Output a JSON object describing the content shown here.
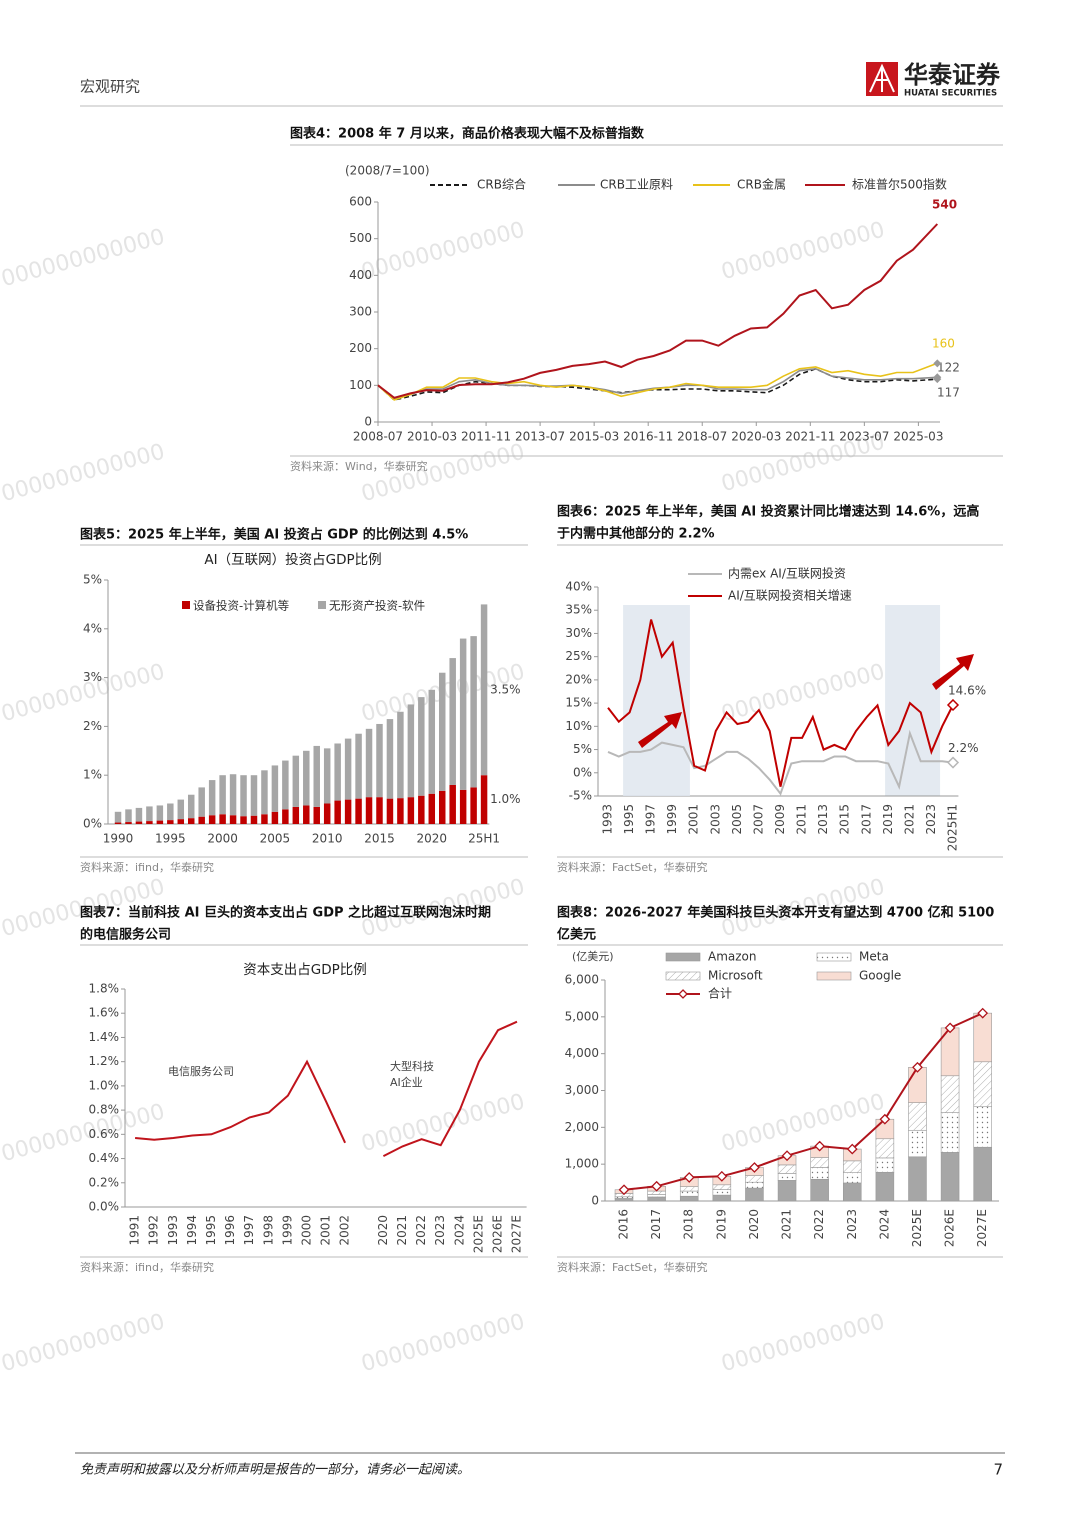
{
  "header": {
    "section": "宏观研究",
    "logo_name": "华泰证券",
    "logo_en": "HUATAI SECURITIES"
  },
  "watermark": "000000000000",
  "chart_data": [
    {
      "type": "line",
      "title": "图表4：2008 年 7 月以来，商品价格表现大幅不及标普指数",
      "subtitle": "(2008/7=100)",
      "source": "资料来源：Wind，华泰研究",
      "x": [
        "2008-07",
        "2009-01",
        "2009-07",
        "2010-01",
        "2010-07",
        "2011-01",
        "2011-07",
        "2012-01",
        "2012-07",
        "2013-01",
        "2013-07",
        "2014-01",
        "2014-07",
        "2015-01",
        "2015-07",
        "2016-01",
        "2016-07",
        "2017-01",
        "2017-07",
        "2018-01",
        "2018-07",
        "2019-01",
        "2019-07",
        "2020-01",
        "2020-07",
        "2021-01",
        "2021-07",
        "2022-01",
        "2022-07",
        "2023-01",
        "2023-07",
        "2024-01",
        "2024-07",
        "2025-01",
        "2025-10"
      ],
      "xlim": [
        "2008-07",
        "2025-11"
      ],
      "xticks": [
        "2008-07",
        "2010-03",
        "2011-11",
        "2013-07",
        "2015-03",
        "2016-11",
        "2018-07",
        "2020-03",
        "2021-11",
        "2023-07",
        "2025-03"
      ],
      "ylim": [
        0,
        600
      ],
      "yticks": [
        0,
        100,
        200,
        300,
        400,
        500,
        600
      ],
      "series": [
        {
          "name": "CRB综合",
          "color": "#1a1a1a",
          "dashed": true,
          "values": [
            100,
            60,
            70,
            82,
            80,
            100,
            110,
            105,
            100,
            100,
            97,
            97,
            95,
            90,
            85,
            80,
            85,
            88,
            88,
            90,
            90,
            85,
            85,
            82,
            80,
            100,
            130,
            145,
            125,
            115,
            110,
            110,
            115,
            112,
            117
          ]
        },
        {
          "name": "CRB工业原料",
          "color": "#8c8c8c",
          "values": [
            100,
            62,
            75,
            90,
            90,
            110,
            115,
            105,
            100,
            100,
            98,
            98,
            100,
            95,
            88,
            78,
            85,
            92,
            95,
            100,
            100,
            90,
            90,
            88,
            88,
            110,
            140,
            145,
            125,
            120,
            115,
            115,
            118,
            118,
            122
          ]
        },
        {
          "name": "CRB金属",
          "color": "#e8c21a",
          "values": [
            100,
            60,
            75,
            95,
            95,
            120,
            120,
            110,
            105,
            110,
            100,
            95,
            100,
            95,
            85,
            70,
            80,
            90,
            95,
            105,
            100,
            95,
            95,
            95,
            100,
            125,
            145,
            150,
            135,
            140,
            130,
            125,
            135,
            135,
            160
          ]
        },
        {
          "name": "标准普尔500指数",
          "color": "#b0141c",
          "values": [
            100,
            66,
            78,
            87,
            85,
            101,
            103,
            103,
            108,
            118,
            134,
            142,
            153,
            158,
            165,
            150,
            170,
            180,
            195,
            222,
            222,
            208,
            235,
            255,
            258,
            295,
            345,
            360,
            310,
            320,
            360,
            385,
            440,
            470,
            540
          ]
        }
      ]
    },
    {
      "type": "bar",
      "stacked": true,
      "title": "图表5：2025 年上半年，美国 AI 投资占 GDP 的比例达到 4.5%",
      "chart_title": "AI（互联网）投资占GDP比例",
      "source": "资料来源：ifind，华泰研究",
      "categories": [
        "1990",
        null,
        null,
        null,
        null,
        "1995",
        null,
        null,
        null,
        null,
        "2000",
        null,
        null,
        null,
        null,
        "2005",
        null,
        null,
        null,
        null,
        "2010",
        null,
        null,
        null,
        null,
        "2015",
        null,
        null,
        null,
        null,
        "2020",
        null,
        null,
        null,
        null,
        "25H1"
      ],
      "ylim": [
        0,
        5
      ],
      "yticks": [
        {
          "value": 0,
          "label": "0%"
        },
        {
          "value": 1,
          "label": "1%"
        },
        {
          "value": 2,
          "label": "2%"
        },
        {
          "value": 3,
          "label": "3%"
        },
        {
          "value": 4,
          "label": "4%"
        },
        {
          "value": 5,
          "label": "5%"
        }
      ],
      "series": [
        {
          "name": "设备投资-计算机等",
          "color": "#c00000",
          "values": [
            0.03,
            0.04,
            0.05,
            0.06,
            0.07,
            0.08,
            0.1,
            0.12,
            0.15,
            0.18,
            0.2,
            0.18,
            0.16,
            0.17,
            0.2,
            0.25,
            0.3,
            0.35,
            0.38,
            0.35,
            0.42,
            0.48,
            0.5,
            0.52,
            0.55,
            0.55,
            0.52,
            0.53,
            0.55,
            0.58,
            0.62,
            0.68,
            0.8,
            0.7,
            0.75,
            1.0
          ],
          "value_labels": [
            null,
            null,
            null,
            null,
            null,
            null,
            null,
            null,
            null,
            null,
            null,
            null,
            null,
            null,
            null,
            null,
            null,
            null,
            null,
            null,
            null,
            null,
            null,
            null,
            null,
            null,
            null,
            null,
            null,
            null,
            null,
            null,
            null,
            null,
            null,
            "1.0%"
          ]
        },
        {
          "name": "无形资产投资-软件",
          "color": "#a6a6a6",
          "values": [
            0.22,
            0.26,
            0.28,
            0.3,
            0.31,
            0.34,
            0.4,
            0.48,
            0.6,
            0.72,
            0.8,
            0.84,
            0.84,
            0.83,
            0.9,
            0.95,
            1.0,
            1.05,
            1.12,
            1.25,
            1.13,
            1.17,
            1.25,
            1.33,
            1.4,
            1.5,
            1.63,
            1.77,
            1.9,
            2.02,
            2.13,
            2.42,
            2.6,
            3.1,
            3.1,
            3.5
          ],
          "value_labels": [
            null,
            null,
            null,
            null,
            null,
            null,
            null,
            null,
            null,
            null,
            null,
            null,
            null,
            null,
            null,
            null,
            null,
            null,
            null,
            null,
            null,
            null,
            null,
            null,
            null,
            null,
            null,
            null,
            null,
            null,
            null,
            null,
            null,
            null,
            null,
            "3.5%"
          ]
        }
      ]
    },
    {
      "type": "line",
      "title": [
        "图表6：2025 年上半年，美国 AI 投资累计同比增速达到 14.6%，远高",
        "于内需中其他部分的 2.2%"
      ],
      "source": "资料来源：FactSet，华泰研究",
      "categories": [
        "1993",
        null,
        "1995",
        null,
        "1997",
        null,
        "1999",
        null,
        "2001",
        null,
        "2003",
        null,
        "2005",
        null,
        "2007",
        null,
        "2009",
        null,
        "2011",
        null,
        "2013",
        null,
        "2015",
        null,
        "2017",
        null,
        "2019",
        null,
        "2021",
        null,
        "2023",
        null,
        "2025H1"
      ],
      "ylim": [
        -5,
        40
      ],
      "yticks": [
        {
          "value": -5,
          "label": "-5%"
        },
        {
          "value": 0,
          "label": "0%"
        },
        {
          "value": 5,
          "label": "5%"
        },
        {
          "value": 10,
          "label": "10%"
        },
        {
          "value": 15,
          "label": "15%"
        },
        {
          "value": 20,
          "label": "20%"
        },
        {
          "value": 25,
          "label": "25%"
        },
        {
          "value": 30,
          "label": "30%"
        },
        {
          "value": 35,
          "label": "35%"
        },
        {
          "value": 40,
          "label": "40%"
        }
      ],
      "series": [
        {
          "name": "内需ex AI/互联网投资",
          "color": "#b8b8b8",
          "values": [
            4.5,
            3.5,
            4.5,
            4.5,
            5,
            6.5,
            6,
            5.5,
            1,
            1.5,
            3,
            4.5,
            4.5,
            3,
            1,
            -1.5,
            -4.5,
            2,
            2.5,
            2.5,
            2.5,
            3.5,
            3.5,
            2.5,
            2.5,
            2.5,
            2,
            -3,
            8.5,
            2.5,
            2.5,
            2.5,
            2.2
          ],
          "value_labels": [
            null,
            null,
            null,
            null,
            null,
            null,
            null,
            null,
            null,
            null,
            null,
            null,
            null,
            null,
            null,
            null,
            null,
            null,
            null,
            null,
            null,
            null,
            null,
            null,
            null,
            null,
            null,
            null,
            null,
            null,
            null,
            null,
            "2.2%"
          ]
        },
        {
          "name": "AI/互联网投资相关增速",
          "color": "#c00000",
          "values": [
            14,
            11,
            13,
            20,
            33,
            25,
            28,
            14,
            1.5,
            0.5,
            9,
            13,
            10.5,
            11,
            13.5,
            9,
            -3,
            7.5,
            7.5,
            12,
            5,
            6,
            5,
            9,
            12,
            14.5,
            6,
            9,
            15,
            13,
            4.5,
            10,
            14.6
          ],
          "value_labels": [
            null,
            null,
            null,
            null,
            null,
            null,
            null,
            null,
            null,
            null,
            null,
            null,
            null,
            null,
            null,
            null,
            null,
            null,
            null,
            null,
            null,
            null,
            null,
            null,
            null,
            null,
            null,
            null,
            null,
            null,
            null,
            null,
            "14.6%"
          ]
        }
      ]
    },
    {
      "type": "line",
      "title": [
        "图表7：当前科技 AI 巨头的资本支出占 GDP 之比超过互联网泡沫时期",
        "的电信服务公司"
      ],
      "chart_title": "资本支出占GDP比例",
      "source": "资料来源：ifind，华泰研究",
      "annotations": [
        "电信服务公司",
        "大型科技",
        "AI企业"
      ],
      "categories": [
        "1991",
        "1992",
        "1993",
        "1994",
        "1995",
        "1996",
        "1997",
        "1998",
        "1999",
        "2000",
        "2001",
        "2002",
        null,
        "2020",
        "2021",
        "2022",
        "2023",
        "2024",
        "2025E",
        "2026E",
        "2027E"
      ],
      "ylim": [
        0,
        1.8
      ],
      "yticks": [
        {
          "value": 0,
          "label": "0.0%"
        },
        {
          "value": 0.2,
          "label": "0.2%"
        },
        {
          "value": 0.4,
          "label": "0.4%"
        },
        {
          "value": 0.6,
          "label": "0.6%"
        },
        {
          "value": 0.8,
          "label": "0.8%"
        },
        {
          "value": 1.0,
          "label": "1.0%"
        },
        {
          "value": 1.2,
          "label": "1.2%"
        },
        {
          "value": 1.4,
          "label": "1.4%"
        },
        {
          "value": 1.6,
          "label": "1.6%"
        },
        {
          "value": 1.8,
          "label": "1.8%"
        }
      ],
      "series": [
        {
          "color": "#c0141c",
          "values": [
            0.57,
            0.555,
            0.57,
            0.59,
            0.6,
            0.66,
            0.74,
            0.78,
            0.92,
            1.2,
            0.87,
            0.53,
            null,
            0.42,
            0.5,
            0.56,
            0.51,
            0.8,
            1.2,
            1.46,
            1.53
          ]
        }
      ]
    },
    {
      "type": "bar",
      "stacked": true,
      "title": [
        "图表8：2026-2027 年美国科技巨头资本开支有望达到 4700 亿和 5100",
        "亿美元"
      ],
      "subtitle": "(亿美元)",
      "source": "资料来源：FactSet，华泰研究",
      "categories": [
        "2016",
        "2017",
        "2018",
        "2019",
        "2020",
        "2021",
        "2022",
        "2023",
        "2024",
        "2025E",
        "2026E",
        "2027E"
      ],
      "ylim": [
        0,
        6000
      ],
      "yticks": [
        0,
        {
          "value": 1000,
          "label": "1,000"
        },
        {
          "value": 2000,
          "label": "2,000"
        },
        {
          "value": 3000,
          "label": "3,000"
        },
        {
          "value": 4000,
          "label": "4,000"
        },
        {
          "value": 5000,
          "label": "5,000"
        },
        {
          "value": 6000,
          "label": "6,000"
        }
      ],
      "series": [
        {
          "name": "Amazon",
          "color": "#a6a6a6",
          "values": [
            70,
            110,
            130,
            160,
            350,
            560,
            590,
            490,
            780,
            1200,
            1320,
            1460
          ]
        },
        {
          "name": "Meta",
          "color": "#ffffff",
          "pattern": "dots",
          "values": [
            45,
            70,
            140,
            150,
            160,
            190,
            320,
            280,
            390,
            720,
            1080,
            1100
          ]
        },
        {
          "name": "Microsoft",
          "color": "#ffffff",
          "pattern": "hatch",
          "values": [
            90,
            90,
            120,
            130,
            180,
            230,
            270,
            320,
            520,
            750,
            1000,
            1220
          ]
        },
        {
          "name": "Google",
          "color": "#f8ddd3",
          "values": [
            100,
            130,
            250,
            230,
            220,
            250,
            310,
            320,
            530,
            960,
            1300,
            1320
          ]
        },
        {
          "name": "合计",
          "type": "line",
          "color": "#b0141c",
          "values": [
            305,
            400,
            640,
            670,
            910,
            1230,
            1490,
            1410,
            2220,
            3630,
            4700,
            5100
          ]
        }
      ]
    }
  ],
  "footer": {
    "disclaimer": "免责声明和披露以及分析师声明是报告的一部分，请务必一起阅读。",
    "page": "7"
  }
}
